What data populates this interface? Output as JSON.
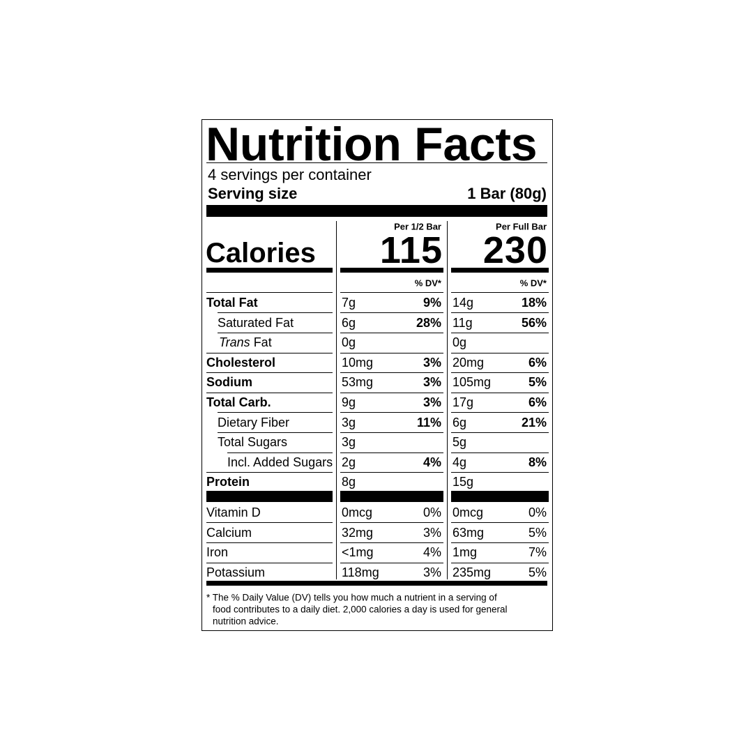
{
  "title": "Nutrition Facts",
  "servings": "4 servings per container",
  "serving_size": {
    "label": "Serving size",
    "value": "1 Bar (80g)"
  },
  "calories_label": "Calories",
  "columns": [
    {
      "header": "Per 1/2 Bar",
      "calories": "115",
      "dv_header": "% DV*"
    },
    {
      "header": "Per Full Bar",
      "calories": "230",
      "dv_header": "% DV*"
    }
  ],
  "nutrients": [
    {
      "name": "Total Fat",
      "bold": true,
      "indent": 0,
      "values": [
        [
          "7g",
          "9%"
        ],
        [
          "14g",
          "18%"
        ]
      ]
    },
    {
      "name": "Saturated Fat",
      "bold": false,
      "indent": 1,
      "values": [
        [
          "6g",
          "28%"
        ],
        [
          "11g",
          "56%"
        ]
      ]
    },
    {
      "name_italic": "Trans",
      "name": "Fat",
      "bold": false,
      "indent": 1,
      "values": [
        [
          "0g"
        ],
        [
          "0g"
        ]
      ]
    },
    {
      "name": "Cholesterol",
      "bold": true,
      "indent": 0,
      "values": [
        [
          "10mg",
          "3%"
        ],
        [
          "20mg",
          "6%"
        ]
      ]
    },
    {
      "name": "Sodium",
      "bold": true,
      "indent": 0,
      "values": [
        [
          "53mg",
          "3%"
        ],
        [
          "105mg",
          "5%"
        ]
      ]
    },
    {
      "name": "Total Carb.",
      "bold": true,
      "indent": 0,
      "values": [
        [
          "9g",
          "3%"
        ],
        [
          "17g",
          "6%"
        ]
      ]
    },
    {
      "name": "Dietary Fiber",
      "bold": false,
      "indent": 1,
      "values": [
        [
          "3g",
          "11%"
        ],
        [
          "6g",
          "21%"
        ]
      ]
    },
    {
      "name": "Total Sugars",
      "bold": false,
      "indent": 1,
      "values": [
        [
          "3g"
        ],
        [
          "5g"
        ]
      ]
    },
    {
      "name": "Incl. Added Sugars",
      "bold": false,
      "indent": 2,
      "values": [
        [
          "2g",
          "4%"
        ],
        [
          "4g",
          "8%"
        ]
      ]
    },
    {
      "name": "Protein",
      "bold": true,
      "indent": 0,
      "values": [
        [
          "8g"
        ],
        [
          "15g"
        ]
      ]
    }
  ],
  "vitamins": [
    {
      "name": "Vitamin D",
      "values": [
        [
          "0mcg",
          "0%"
        ],
        [
          "0mcg",
          "0%"
        ]
      ]
    },
    {
      "name": "Calcium",
      "values": [
        [
          "32mg",
          "3%"
        ],
        [
          "63mg",
          "5%"
        ]
      ]
    },
    {
      "name": "Iron",
      "values": [
        [
          "<1mg",
          "4%"
        ],
        [
          "1mg",
          "7%"
        ]
      ]
    },
    {
      "name": "Potassium",
      "values": [
        [
          "118mg",
          "3%"
        ],
        [
          "235mg",
          "5%"
        ]
      ]
    }
  ],
  "footnote": [
    "* The % Daily Value (DV) tells you how much a nutrient in a serving of",
    "food contributes to a daily diet. 2,000 calories a day is used for general",
    "nutrition advice."
  ]
}
